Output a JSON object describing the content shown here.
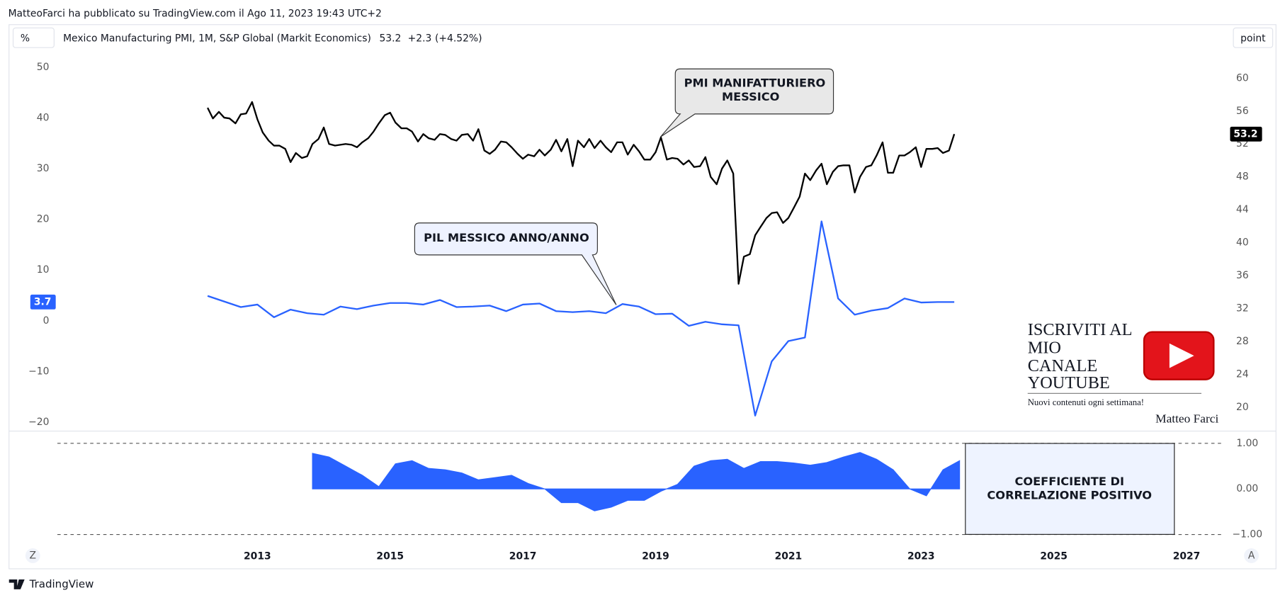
{
  "header": "MatteoFarci ha pubblicato su TradingView.com il Ago 11, 2023 19:43 UTC+2",
  "toolbar": {
    "left": "%",
    "right": "point",
    "zoom": "Z",
    "auto": "A"
  },
  "legend": {
    "change": "+2.3",
    "change_pct": "(+4.52%)"
  },
  "watermark": {
    "lines": [
      "ISCRIVITI AL",
      "MIO",
      "CANALE",
      "YOUTUBE"
    ],
    "tagline": "Nuovi contenuti ogni settimana!",
    "author": "Matteo Farci"
  },
  "footer": "TradingView",
  "chart_data": [
    {
      "type": "line",
      "annotations": [
        [
          "PMI MANIFATTURIERO",
          "MESSICO"
        ],
        "PIL MESSICO ANNO/ANNO"
      ],
      "xlim": [
        2009.27,
        2027.52
      ],
      "xticks": [
        2013,
        2015,
        2017,
        2019,
        2021,
        2023,
        2025,
        2027
      ],
      "ylim": [
        -21.6,
        58.4
      ],
      "yticks": [
        50,
        40,
        30,
        20,
        10,
        0,
        {
          "value": -10,
          "label": "−10"
        },
        {
          "value": -20,
          "label": "−20"
        }
      ],
      "y2lim": [
        17.2,
        66.5
      ],
      "y2ticks": [
        60,
        56,
        52,
        48,
        44,
        40,
        36,
        32,
        28,
        24,
        20
      ],
      "series": [
        {
          "name": "Mexico Manufacturing PMI, 1M, S&P Global (Markit Economics)",
          "color": "#000000",
          "axis": "y2",
          "x": [
            2012.25,
            2012.33,
            2012.42,
            2012.5,
            2012.58,
            2012.67,
            2012.75,
            2012.83,
            2012.92,
            2013,
            2013.08,
            2013.17,
            2013.25,
            2013.33,
            2013.42,
            2013.5,
            2013.58,
            2013.67,
            2013.75,
            2013.83,
            2013.92,
            2014,
            2014.08,
            2014.17,
            2014.25,
            2014.33,
            2014.42,
            2014.5,
            2014.58,
            2014.67,
            2014.75,
            2014.83,
            2014.92,
            2015,
            2015.08,
            2015.17,
            2015.25,
            2015.33,
            2015.42,
            2015.5,
            2015.58,
            2015.67,
            2015.75,
            2015.83,
            2015.92,
            2016,
            2016.08,
            2016.17,
            2016.25,
            2016.33,
            2016.42,
            2016.5,
            2016.58,
            2016.67,
            2016.75,
            2016.83,
            2016.92,
            2017,
            2017.08,
            2017.17,
            2017.25,
            2017.33,
            2017.42,
            2017.5,
            2017.58,
            2017.67,
            2017.75,
            2017.83,
            2017.92,
            2018,
            2018.08,
            2018.17,
            2018.25,
            2018.33,
            2018.42,
            2018.5,
            2018.58,
            2018.67,
            2018.75,
            2018.83,
            2018.92,
            2019,
            2019.08,
            2019.17,
            2019.25,
            2019.33,
            2019.42,
            2019.5,
            2019.58,
            2019.67,
            2019.75,
            2019.83,
            2019.92,
            2020,
            2020.08,
            2020.17,
            2020.25,
            2020.33,
            2020.42,
            2020.5,
            2020.58,
            2020.67,
            2020.75,
            2020.83,
            2020.92,
            2021,
            2021.08,
            2021.17,
            2021.25,
            2021.33,
            2021.42,
            2021.5,
            2021.58,
            2021.67,
            2021.75,
            2021.83,
            2021.92,
            2022,
            2022.08,
            2022.17,
            2022.25,
            2022.33,
            2022.42,
            2022.5,
            2022.58,
            2022.67,
            2022.75,
            2022.83,
            2022.92,
            2023,
            2023.08,
            2023.17,
            2023.25,
            2023.33,
            2023.42,
            2023.5
          ],
          "values": [
            56.4,
            55.1,
            55.9,
            55.2,
            55.1,
            54.5,
            55.6,
            55.7,
            57.1,
            55.0,
            53.4,
            52.4,
            51.8,
            51.8,
            51.4,
            49.8,
            50.9,
            50.3,
            50.5,
            52.0,
            52.6,
            54.0,
            52.0,
            51.8,
            51.9,
            52.0,
            51.9,
            51.6,
            52.2,
            52.7,
            53.5,
            54.5,
            55.5,
            55.8,
            54.6,
            53.9,
            53.9,
            53.5,
            52.3,
            53.2,
            52.7,
            52.5,
            53.2,
            53.1,
            52.6,
            52.4,
            53.1,
            53.2,
            52.4,
            53.8,
            51.2,
            50.8,
            51.3,
            52.3,
            52.2,
            51.6,
            50.8,
            50.2,
            50.7,
            50.5,
            51.3,
            50.6,
            51.3,
            52.5,
            51.1,
            52.6,
            49.3,
            52.4,
            51.6,
            52.6,
            51.5,
            52.4,
            51.6,
            51.0,
            52.2,
            52.2,
            50.7,
            51.9,
            51.1,
            50.1,
            50.1,
            51.0,
            52.8,
            50.1,
            50.3,
            50.2,
            49.5,
            50.0,
            49.2,
            49.3,
            50.4,
            48.0,
            47.1,
            49.0,
            50.0,
            48.4,
            35.0,
            38.3,
            38.6,
            40.9,
            41.9,
            43.0,
            43.6,
            43.7,
            42.4,
            43.0,
            44.2,
            45.6,
            48.4,
            47.6,
            48.8,
            49.6,
            47.1,
            48.6,
            49.3,
            49.4,
            49.4,
            46.1,
            48.0,
            49.2,
            49.4,
            50.6,
            52.2,
            48.5,
            48.5,
            50.6,
            50.6,
            51.0,
            51.6,
            49.2,
            51.4,
            51.4,
            51.5,
            50.9,
            51.2,
            53.2
          ]
        },
        {
          "color": "#2962ff",
          "axis": "y",
          "x": [
            2012.25,
            2012.5,
            2012.75,
            2013,
            2013.25,
            2013.5,
            2013.75,
            2014,
            2014.25,
            2014.5,
            2014.75,
            2015,
            2015.25,
            2015.5,
            2015.75,
            2016,
            2016.25,
            2016.5,
            2016.75,
            2017,
            2017.25,
            2017.5,
            2017.75,
            2018,
            2018.25,
            2018.5,
            2018.75,
            2019,
            2019.25,
            2019.5,
            2019.75,
            2020,
            2020.25,
            2020.5,
            2020.75,
            2021,
            2021.25,
            2021.5,
            2021.75,
            2022,
            2022.25,
            2022.5,
            2022.75,
            2023,
            2023.25,
            2023.5
          ],
          "values": [
            4.9,
            3.8,
            2.7,
            3.2,
            0.7,
            2.2,
            1.5,
            1.2,
            2.8,
            2.3,
            3.0,
            3.5,
            3.5,
            3.2,
            4.1,
            2.7,
            2.8,
            3.0,
            1.9,
            3.2,
            3.4,
            1.9,
            1.7,
            1.9,
            1.5,
            3.3,
            2.8,
            1.3,
            1.4,
            -1.0,
            -0.2,
            -0.7,
            -0.9,
            -18.7,
            -8.0,
            -4.0,
            -3.3,
            19.6,
            4.4,
            1.2,
            2.0,
            2.5,
            4.4,
            3.6,
            3.7,
            3.7
          ]
        }
      ]
    },
    {
      "type": "area",
      "annotation": [
        "COEFFICIENTE DI",
        "CORRELAZIONE POSITIVO"
      ],
      "xlim": [
        2009.27,
        2027.52
      ],
      "ylim": [
        -1.23,
        1.25
      ],
      "yticks": [
        {
          "value": 1,
          "label": "1.00"
        },
        {
          "value": 0,
          "label": "0.00"
        },
        {
          "value": -1,
          "label": "−1.00"
        }
      ],
      "hlines": [
        1,
        -1
      ],
      "color": "#2962ff",
      "x": [
        2013.83,
        2014.08,
        2014.33,
        2014.58,
        2014.83,
        2015.08,
        2015.33,
        2015.58,
        2015.83,
        2016.08,
        2016.33,
        2016.58,
        2016.83,
        2017.08,
        2017.33,
        2017.58,
        2017.83,
        2018.08,
        2018.33,
        2018.58,
        2018.83,
        2019.08,
        2019.33,
        2019.58,
        2019.83,
        2020.08,
        2020.33,
        2020.58,
        2020.83,
        2021.08,
        2021.33,
        2021.58,
        2021.83,
        2022.08,
        2022.33,
        2022.58,
        2022.83,
        2023.08,
        2023.33,
        2023.58
      ],
      "values": [
        0.78,
        0.7,
        0.5,
        0.3,
        0.05,
        0.55,
        0.62,
        0.45,
        0.42,
        0.35,
        0.2,
        0.25,
        0.3,
        0.12,
        0.0,
        -0.3,
        -0.3,
        -0.48,
        -0.4,
        -0.25,
        -0.25,
        -0.05,
        0.1,
        0.5,
        0.62,
        0.65,
        0.45,
        0.6,
        0.6,
        0.57,
        0.52,
        0.58,
        0.7,
        0.8,
        0.65,
        0.42,
        0.0,
        -0.15,
        0.42,
        0.62
      ]
    }
  ]
}
